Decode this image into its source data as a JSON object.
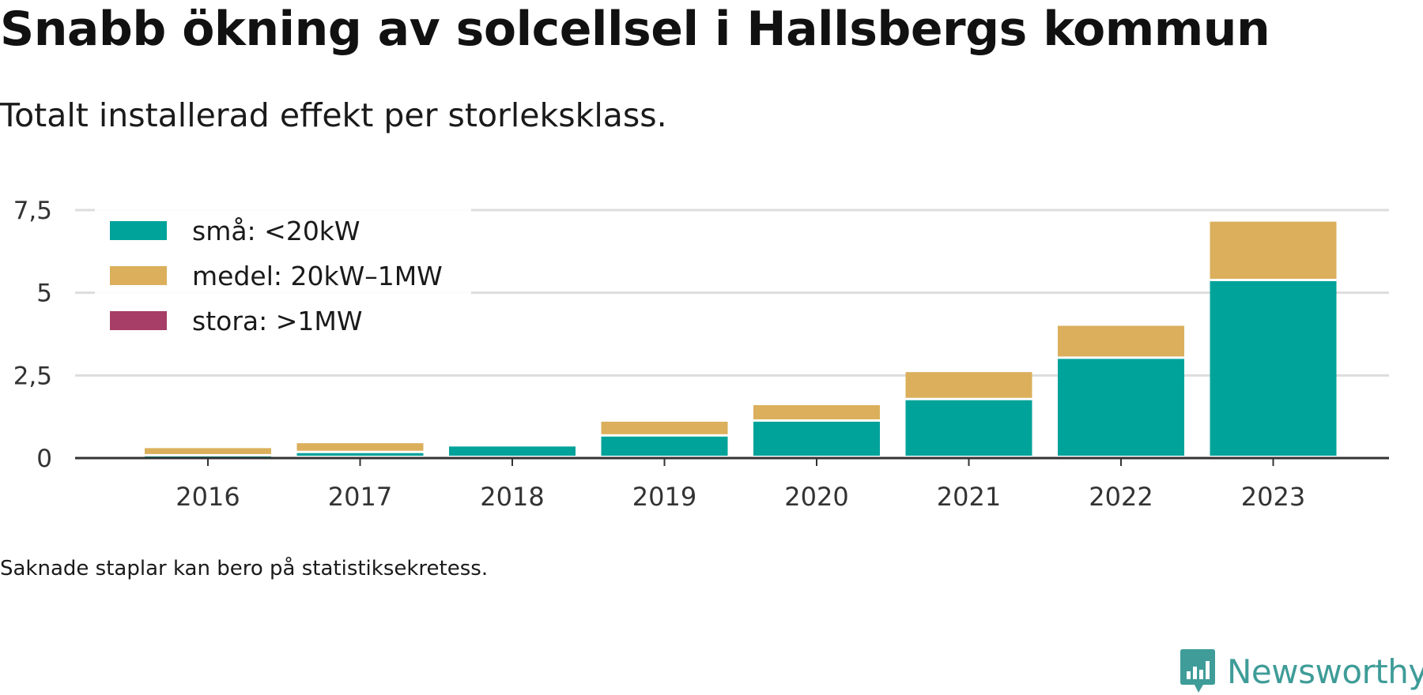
{
  "header": {
    "title": "Snabb ökning av solcellsel i Hallsbergs kommun",
    "subtitle": "Totalt installerad effekt per storleksklass."
  },
  "footer": {
    "note": "Saknade staplar kan bero på statistiksekretess.",
    "brand": "Newsworthy"
  },
  "colors": {
    "small": "#00a39a",
    "medium": "#dbaf5c",
    "large": "#a63e67",
    "grid": "#dddddd",
    "axis": "#333333",
    "brand": "#3f9c98"
  },
  "chart_data": {
    "type": "bar",
    "stacked": true,
    "categories": [
      "2016",
      "2017",
      "2018",
      "2019",
      "2020",
      "2021",
      "2022",
      "2023"
    ],
    "series": [
      {
        "name": "små: <20kW",
        "color": "#00a39a",
        "values": [
          0.05,
          0.15,
          0.35,
          0.65,
          1.1,
          1.75,
          3.0,
          5.35
        ]
      },
      {
        "name": "medel: 20kW–1MW",
        "color": "#dbaf5c",
        "values": [
          0.25,
          0.3,
          0,
          0.45,
          0.5,
          0.85,
          1.0,
          1.8
        ]
      },
      {
        "name": "stora: >1MW",
        "color": "#a63e67",
        "values": [
          0,
          0,
          0,
          0,
          0,
          0,
          0,
          0
        ]
      }
    ],
    "yticks": [
      0,
      2.5,
      5,
      7.5
    ],
    "ytick_labels": [
      "0",
      "2,5",
      "5",
      "7,5"
    ],
    "ylim": [
      0,
      7.5
    ],
    "xlabel": "",
    "ylabel": "",
    "grid": true,
    "legend_position": "top-left"
  }
}
